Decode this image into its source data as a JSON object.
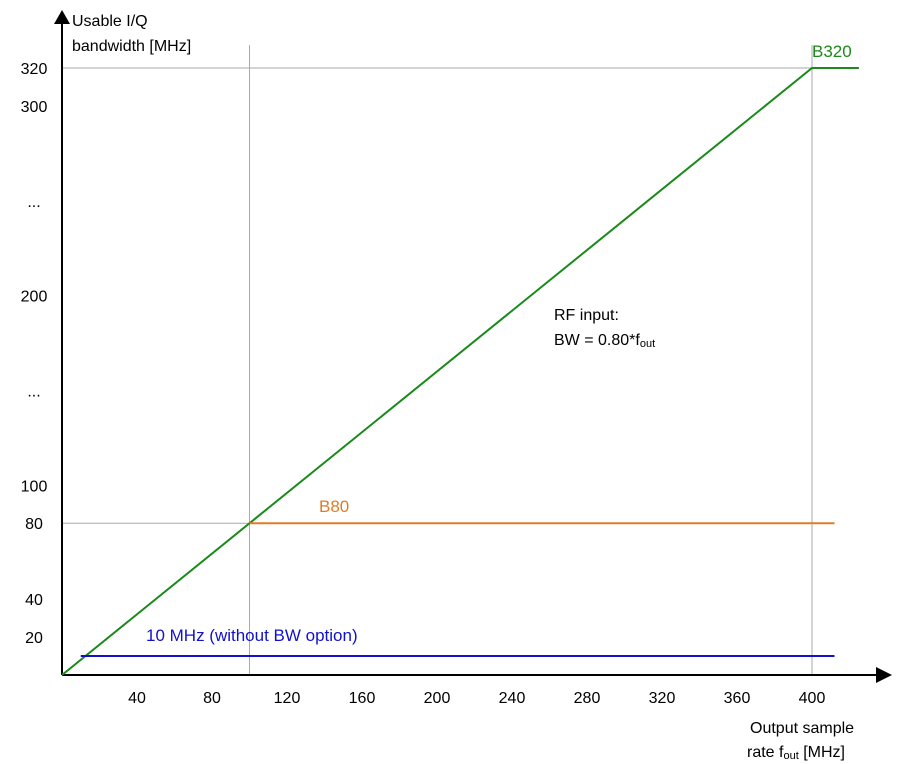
{
  "chart_data": {
    "type": "line",
    "title": "",
    "ylabel_lines": [
      "Usable I/Q",
      "bandwidth [MHz]"
    ],
    "xlabel_lines": [
      "Output sample",
      "rate f",
      "out",
      " [MHz]"
    ],
    "x_ticks": [
      40,
      80,
      120,
      160,
      200,
      240,
      280,
      320,
      360,
      400
    ],
    "y_ticks": [
      {
        "value": 20,
        "label": "20"
      },
      {
        "value": 40,
        "label": "40"
      },
      {
        "value": 80,
        "label": "80"
      },
      {
        "value": 100,
        "label": "100"
      },
      {
        "value": 150,
        "label": "..."
      },
      {
        "value": 200,
        "label": "200"
      },
      {
        "value": 250,
        "label": "..."
      },
      {
        "value": 300,
        "label": "300"
      },
      {
        "value": 320,
        "label": "320"
      }
    ],
    "reference_lines": {
      "vertical": [
        100,
        400
      ],
      "horizontal": [
        80,
        320
      ]
    },
    "series": [
      {
        "name": "B320",
        "color": "#1a8a1a",
        "points": [
          [
            0,
            0
          ],
          [
            400,
            320
          ],
          [
            425,
            320
          ]
        ]
      },
      {
        "name": "B80",
        "color": "#e07b26",
        "points": [
          [
            100,
            80
          ],
          [
            412,
            80
          ]
        ]
      },
      {
        "name": "10 MHz (without BW option)",
        "color": "#1111cc",
        "points": [
          [
            10,
            10
          ],
          [
            412,
            10
          ]
        ]
      }
    ],
    "annotations": {
      "line1": "RF input:",
      "line2_prefix": "BW = 0.80*f",
      "line2_sub": "out"
    }
  }
}
